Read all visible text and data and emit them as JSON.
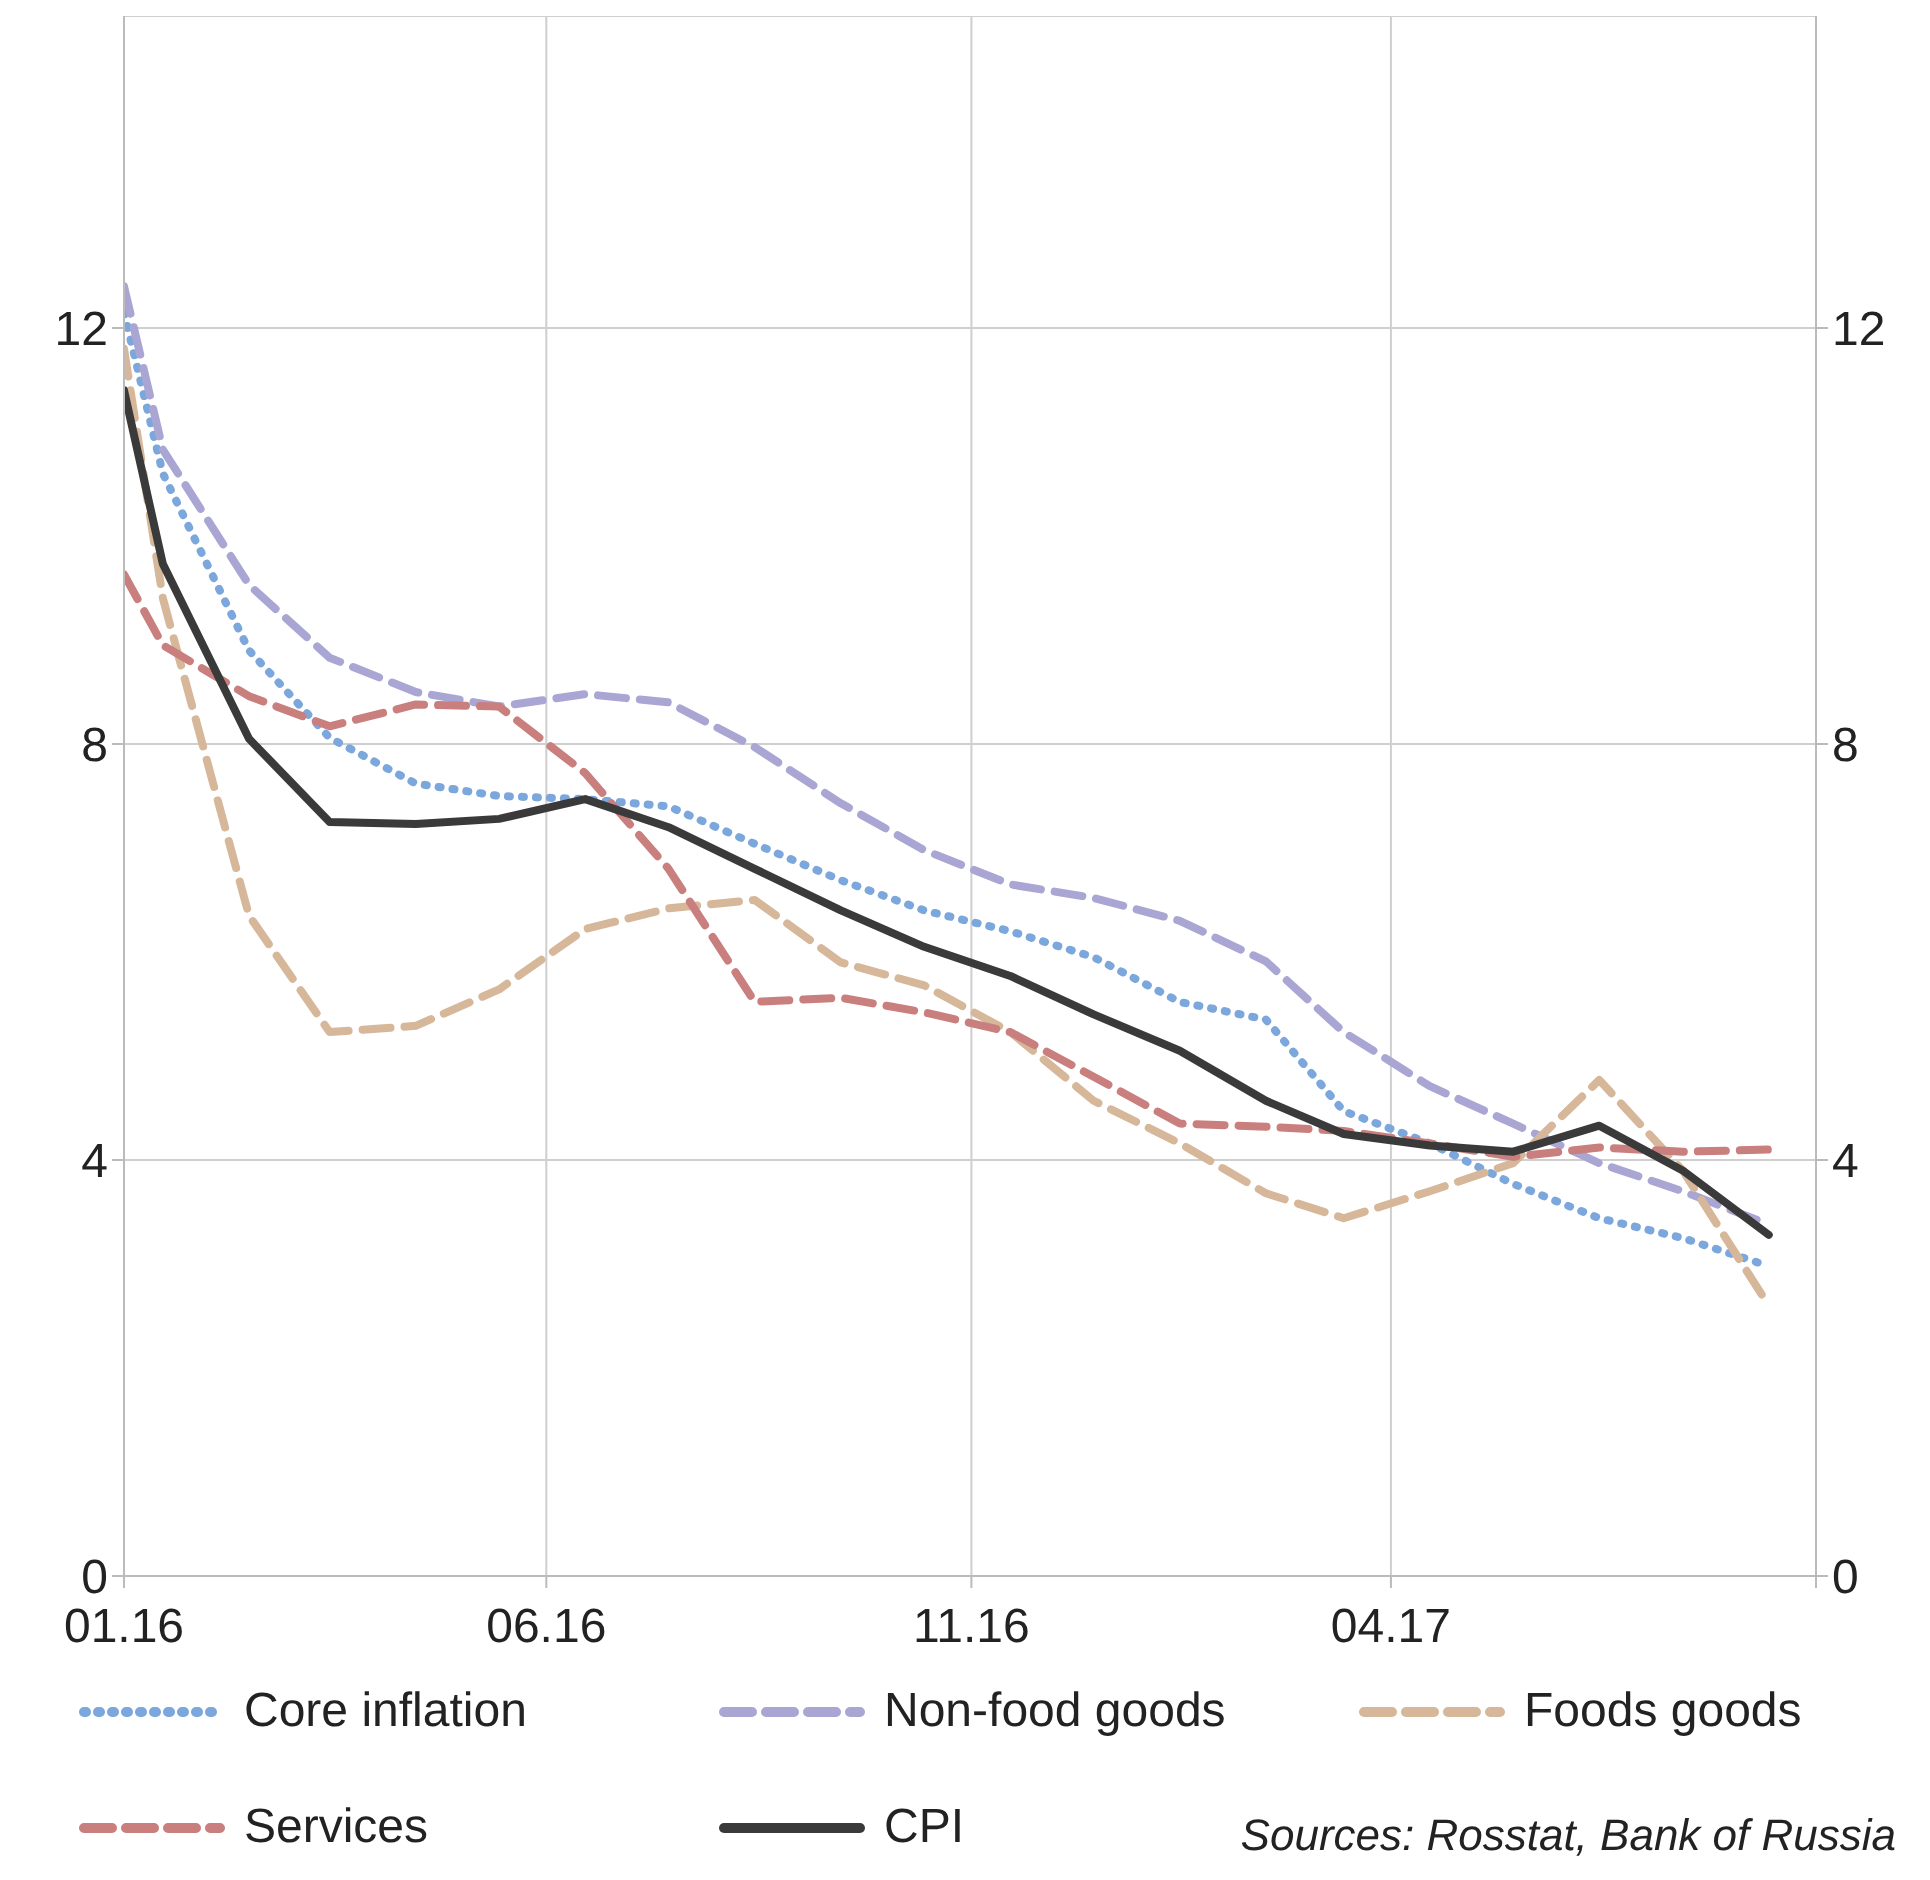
{
  "chart_data": {
    "type": "line",
    "x": [
      "2016-01-01",
      "2016-01-15",
      "2016-02-15",
      "2016-03-15",
      "2016-04-15",
      "2016-05-15",
      "2016-06-15",
      "2016-07-15",
      "2016-08-15",
      "2016-09-15",
      "2016-10-15",
      "2016-11-15",
      "2016-12-15",
      "2017-01-15",
      "2017-02-15",
      "2017-03-15",
      "2017-04-15",
      "2017-05-15",
      "2017-06-15",
      "2017-07-15",
      "2017-08-15"
    ],
    "series": [
      {
        "name": "Core inflation",
        "color": "#7ba7dc",
        "line_style": "dotted",
        "values": [
          12.15,
          10.6,
          8.9,
          8.06,
          7.62,
          7.5,
          7.47,
          7.4,
          7.04,
          6.69,
          6.4,
          6.2,
          5.95,
          5.52,
          5.35,
          4.47,
          4.16,
          3.77,
          3.44,
          3.25,
          2.98
        ]
      },
      {
        "name": "Non-food goods",
        "color": "#a9a6d4",
        "line_style": "dashed",
        "values": [
          12.4,
          10.83,
          9.53,
          8.83,
          8.5,
          8.36,
          8.48,
          8.4,
          7.97,
          7.43,
          6.98,
          6.65,
          6.52,
          6.3,
          5.91,
          5.23,
          4.71,
          4.35,
          3.97,
          3.7,
          3.38
        ]
      },
      {
        "name": "Foods goods",
        "color": "#d6b799",
        "line_style": "dashed",
        "values": [
          11.8,
          9.4,
          6.35,
          5.23,
          5.29,
          5.64,
          6.22,
          6.42,
          6.5,
          5.9,
          5.68,
          5.23,
          4.57,
          4.16,
          3.68,
          3.44,
          3.7,
          3.97,
          4.77,
          3.9,
          2.6
        ]
      },
      {
        "name": "Services",
        "color": "#c97f7d",
        "line_style": "dashed",
        "values": [
          9.63,
          8.95,
          8.46,
          8.17,
          8.38,
          8.36,
          7.72,
          6.8,
          5.52,
          5.56,
          5.42,
          5.23,
          4.8,
          4.35,
          4.32,
          4.28,
          4.16,
          4.03,
          4.12,
          4.08,
          4.1
        ]
      },
      {
        "name": "CPI",
        "color": "#3a3a3a",
        "line_style": "solid",
        "values": [
          11.4,
          9.73,
          8.05,
          7.25,
          7.23,
          7.28,
          7.47,
          7.2,
          6.8,
          6.4,
          6.05,
          5.77,
          5.4,
          5.05,
          4.57,
          4.25,
          4.14,
          4.08,
          4.33,
          3.9,
          3.28
        ]
      }
    ],
    "xlim": [
      "2016-01",
      "2017-09"
    ],
    "xticks": [
      {
        "value": "2016-01",
        "label": "01.16"
      },
      {
        "value": "2016-06",
        "label": "06.16"
      },
      {
        "value": "2016-11",
        "label": "11.16"
      },
      {
        "value": "2017-04",
        "label": "04.17"
      },
      {
        "value": "2017-09",
        "label": null
      }
    ],
    "ylim": [
      0,
      15
    ],
    "yticks": [
      0,
      4,
      8,
      12
    ],
    "y2lim": [
      0,
      15
    ],
    "y2ticks": [
      0,
      4,
      8,
      12
    ],
    "grid": true,
    "legend": "bottom",
    "annotations": [
      "Sources: Rosstat, Bank of Russia"
    ]
  }
}
